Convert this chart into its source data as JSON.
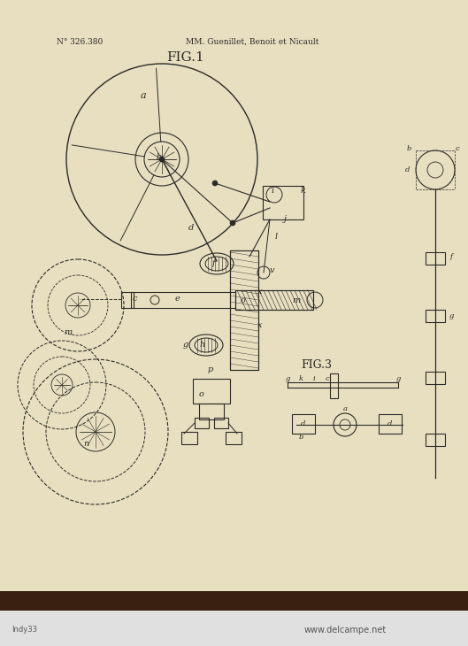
{
  "bg_color": "#e8dfc0",
  "line_color": "#2a2a2a",
  "header_left": "N° 326.380",
  "header_right": "MM. Guenillet, Benoit et Nicault",
  "fig1_label": "FIG.1",
  "fig3_label": "FIG.3",
  "watermark": "www.delcampe.net",
  "source_label": "Indy33",
  "bottom_bar_color": "#3a2010",
  "bottom_white": "#e0e0e0"
}
